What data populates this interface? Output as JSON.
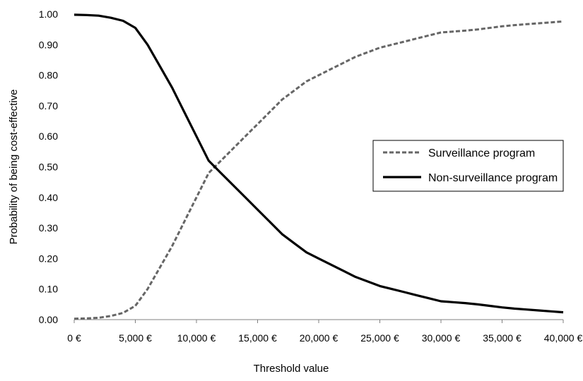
{
  "chart_data": {
    "type": "line",
    "title": "",
    "xlabel": "Threshold value",
    "ylabel": "Probability of being cost-effective",
    "xlim": [
      0,
      40000
    ],
    "ylim": [
      0,
      1
    ],
    "x_ticks": [
      0,
      5000,
      10000,
      15000,
      20000,
      25000,
      30000,
      35000,
      40000
    ],
    "x_tick_labels": [
      "0 €",
      "5,000 €",
      "10,000 €",
      "15,000 €",
      "20,000 €",
      "25,000 €",
      "30,000 €",
      "35,000 €",
      "40,000 €"
    ],
    "y_ticks": [
      0,
      0.1,
      0.2,
      0.3,
      0.4,
      0.5,
      0.6,
      0.7,
      0.8,
      0.9,
      1.0
    ],
    "y_tick_labels": [
      "0.00",
      "0.10",
      "0.20",
      "0.30",
      "0.40",
      "0.50",
      "0.60",
      "0.70",
      "0.80",
      "0.90",
      "1.00"
    ],
    "grid": false,
    "legend_position": "right",
    "x": [
      0,
      1000,
      2000,
      3000,
      4000,
      5000,
      6000,
      7000,
      8000,
      9000,
      10000,
      11000,
      12000,
      13000,
      14000,
      15000,
      16000,
      17000,
      18000,
      19000,
      20000,
      21000,
      22000,
      23000,
      24000,
      25000,
      26000,
      27000,
      28000,
      29000,
      30000,
      31000,
      32000,
      33000,
      34000,
      35000,
      36000,
      37000,
      38000,
      39000,
      40000
    ],
    "series": [
      {
        "name": "Surveillance program",
        "color": "#666666",
        "dash": "dashed",
        "values": [
          0.003,
          0.004,
          0.006,
          0.012,
          0.022,
          0.045,
          0.1,
          0.17,
          0.24,
          0.32,
          0.4,
          0.48,
          0.52,
          0.56,
          0.6,
          0.64,
          0.68,
          0.72,
          0.75,
          0.78,
          0.8,
          0.82,
          0.84,
          0.86,
          0.875,
          0.89,
          0.9,
          0.91,
          0.92,
          0.93,
          0.94,
          0.943,
          0.946,
          0.95,
          0.955,
          0.96,
          0.964,
          0.967,
          0.97,
          0.973,
          0.976
        ]
      },
      {
        "name": "Non-surveillance program",
        "color": "#000000",
        "dash": "solid",
        "values": [
          0.998,
          0.997,
          0.995,
          0.988,
          0.978,
          0.955,
          0.9,
          0.83,
          0.76,
          0.68,
          0.6,
          0.52,
          0.48,
          0.44,
          0.4,
          0.36,
          0.32,
          0.28,
          0.25,
          0.22,
          0.2,
          0.18,
          0.16,
          0.14,
          0.125,
          0.11,
          0.1,
          0.09,
          0.08,
          0.07,
          0.06,
          0.057,
          0.054,
          0.05,
          0.045,
          0.04,
          0.036,
          0.033,
          0.03,
          0.027,
          0.024
        ]
      }
    ]
  }
}
